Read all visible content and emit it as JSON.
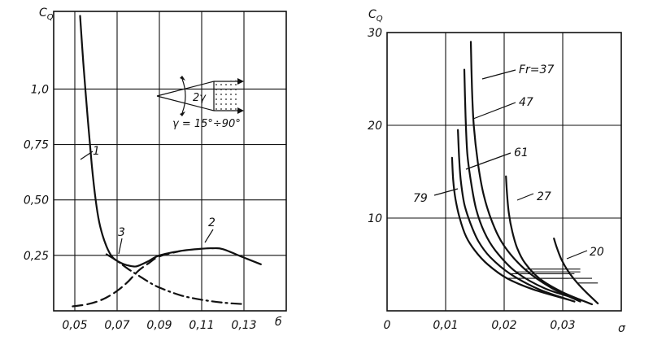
{
  "chart_data": [
    {
      "type": "line",
      "ylabel": "C",
      "ylabel_sub": "Q",
      "xlabel": "б",
      "xlim": [
        0.04,
        0.15
      ],
      "ylim": [
        0,
        1.35
      ],
      "grid": true,
      "x_ticks": [
        "0,05",
        "0,07",
        "0,09",
        "0,11",
        "0,13"
      ],
      "x_tick_values": [
        0.05,
        0.07,
        0.09,
        0.11,
        0.13
      ],
      "y_ticks": [
        "0,25",
        "0,50",
        "0,75",
        "1,0"
      ],
      "y_tick_values": [
        0.25,
        0.5,
        0.75,
        1.0
      ],
      "inset_label_angle": "2γ",
      "inset_label_range": "γ = 15°÷90°",
      "series": [
        {
          "name": "1",
          "style": "solid",
          "x": [
            0.0525,
            0.054,
            0.056,
            0.058,
            0.06,
            0.062,
            0.065,
            0.068,
            0.072,
            0.075,
            0.078,
            0.08,
            0.085,
            0.09,
            0.1,
            0.11,
            0.115,
            0.12,
            0.13,
            0.138
          ],
          "y": [
            1.33,
            1.12,
            0.88,
            0.66,
            0.49,
            0.38,
            0.29,
            0.24,
            0.215,
            0.205,
            0.2,
            0.203,
            0.225,
            0.25,
            0.27,
            0.28,
            0.282,
            0.278,
            0.24,
            0.21
          ]
        },
        {
          "name": "2",
          "style": "dashed",
          "x": [
            0.049,
            0.055,
            0.06,
            0.065,
            0.07,
            0.075,
            0.08,
            0.085,
            0.09,
            0.1
          ],
          "y": [
            0.02,
            0.028,
            0.04,
            0.06,
            0.09,
            0.13,
            0.18,
            0.215,
            0.245,
            0.27
          ]
        },
        {
          "name": "3",
          "style": "dash-dot",
          "x": [
            0.065,
            0.07,
            0.075,
            0.08,
            0.085,
            0.09,
            0.1,
            0.11,
            0.12,
            0.13
          ],
          "y": [
            0.255,
            0.225,
            0.19,
            0.16,
            0.13,
            0.105,
            0.07,
            0.05,
            0.037,
            0.03
          ]
        }
      ],
      "curve_labels": [
        "1",
        "2",
        "3"
      ]
    },
    {
      "type": "line",
      "ylabel": "C",
      "ylabel_sub": "Q",
      "xlabel": "σ",
      "xlim": [
        0,
        0.04
      ],
      "ylim": [
        0,
        30
      ],
      "grid": true,
      "x_ticks": [
        "0",
        "0,01",
        "0,02",
        "0,03"
      ],
      "x_tick_values": [
        0,
        0.01,
        0.02,
        0.03
      ],
      "y_ticks": [
        "10",
        "20",
        "30"
      ],
      "y_tick_values": [
        10,
        20,
        30
      ],
      "series": [
        {
          "name": "Fr=37",
          "x": [
            0.0143,
            0.0145,
            0.0148,
            0.0155,
            0.0165,
            0.018,
            0.02,
            0.0235,
            0.028,
            0.033
          ],
          "y": [
            29,
            24,
            20,
            16,
            12.5,
            9.5,
            7,
            4.5,
            2.5,
            1.0
          ]
        },
        {
          "name": "47",
          "x": [
            0.0132,
            0.0134,
            0.0137,
            0.0143,
            0.0152,
            0.0166,
            0.0185,
            0.022,
            0.027,
            0.033
          ],
          "y": [
            26,
            21,
            17,
            14,
            11,
            8.5,
            6.5,
            4.2,
            2.4,
            1.2
          ]
        },
        {
          "name": "61",
          "x": [
            0.0121,
            0.0123,
            0.0126,
            0.0132,
            0.0142,
            0.0156,
            0.0176,
            0.021,
            0.026,
            0.032
          ],
          "y": [
            19.5,
            16.5,
            14,
            11.5,
            9.5,
            7.5,
            5.8,
            4,
            2.3,
            1.0
          ]
        },
        {
          "name": "79",
          "x": [
            0.0111,
            0.0113,
            0.0117,
            0.0124,
            0.0135,
            0.015,
            0.0172,
            0.0205,
            0.025,
            0.031
          ],
          "y": [
            16.5,
            14,
            12,
            10,
            8,
            6.5,
            5,
            3.5,
            2.3,
            1.2
          ]
        },
        {
          "name": "27",
          "x": [
            0.0203,
            0.0205,
            0.0208,
            0.0214,
            0.0222,
            0.0235,
            0.026,
            0.03,
            0.035
          ],
          "y": [
            14.5,
            12.5,
            10.5,
            8.5,
            6.8,
            5.2,
            3.5,
            2.0,
            0.7
          ]
        },
        {
          "name": "20",
          "x": [
            0.0285,
            0.029,
            0.0298,
            0.031,
            0.0325,
            0.034,
            0.036
          ],
          "y": [
            7.8,
            6.8,
            5.5,
            4.2,
            3.0,
            2.0,
            0.8
          ]
        }
      ],
      "curve_labels": [
        "Fr=37",
        "47",
        "61",
        "79",
        "27",
        "20"
      ]
    }
  ]
}
